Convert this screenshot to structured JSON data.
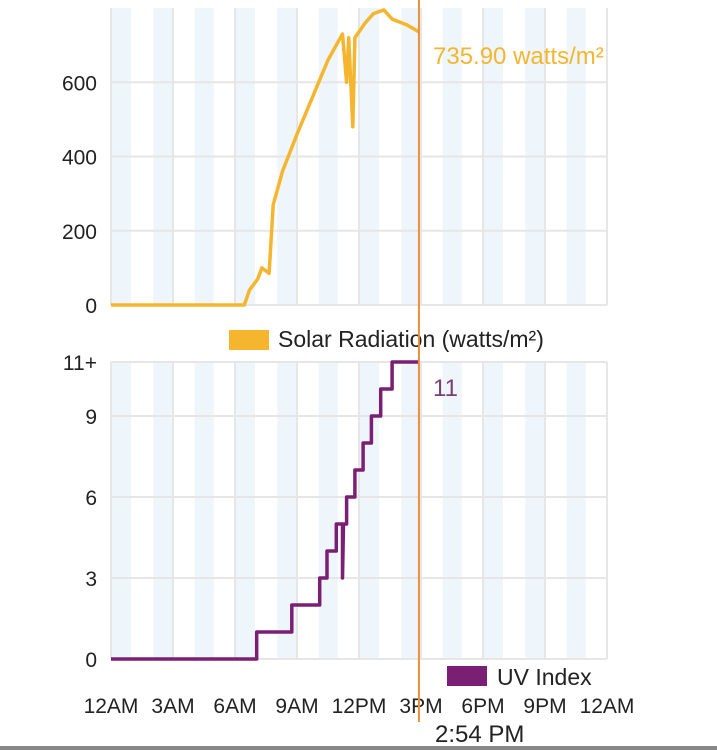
{
  "chart_data": [
    {
      "type": "line",
      "title": "",
      "legend": "Solar Radiation (watts/m²)",
      "legend_placement": "bottom-right",
      "ylim": [
        0,
        800
      ],
      "yticks": [
        "0",
        "200",
        "400",
        "600"
      ],
      "ytick_values": [
        0,
        200,
        400,
        600
      ],
      "xlim": [
        0,
        24
      ],
      "color": "#f6b52e",
      "cursor_label": "735.90 watts/m²",
      "x": [
        0,
        6.45,
        6.7,
        7.1,
        7.3,
        7.65,
        7.85,
        8.3,
        9.0,
        9.9,
        10.5,
        11.2,
        11.4,
        11.5,
        11.7,
        11.8,
        12.3,
        12.7,
        13.2,
        13.6,
        14.3,
        14.9
      ],
      "y": [
        0,
        0,
        40,
        70,
        100,
        85,
        270,
        360,
        460,
        580,
        660,
        730,
        600,
        720,
        480,
        720,
        760,
        785,
        795,
        770,
        755,
        735.9
      ]
    },
    {
      "type": "line",
      "title": "",
      "legend": "UV Index",
      "legend_placement": "bottom-right",
      "ylim": [
        0,
        11
      ],
      "yticks": [
        "0",
        "3",
        "6",
        "9",
        "11+"
      ],
      "ytick_values": [
        0,
        3,
        6,
        9,
        11
      ],
      "xlim": [
        0,
        24
      ],
      "color": "#7b1f74",
      "cursor_label": "11",
      "x": [
        0,
        7.05,
        7.05,
        8.75,
        8.75,
        10.1,
        10.1,
        10.45,
        10.45,
        10.9,
        10.9,
        11.2,
        11.2,
        11.25,
        11.4,
        11.4,
        11.8,
        11.8,
        12.2,
        12.2,
        12.6,
        12.6,
        13.05,
        13.05,
        13.6,
        13.6,
        14.9
      ],
      "y": [
        0,
        0,
        1,
        1,
        2,
        2,
        3,
        3,
        4,
        4,
        5,
        5,
        3,
        5,
        5,
        6,
        6,
        7,
        7,
        8,
        8,
        9,
        9,
        10,
        10,
        11,
        11
      ]
    }
  ],
  "xaxis": {
    "ticks": [
      "12AM",
      "3AM",
      "6AM",
      "9AM",
      "12PM",
      "3PM",
      "6PM",
      "9PM",
      "12AM"
    ],
    "tick_values": [
      0,
      3,
      6,
      9,
      12,
      15,
      18,
      21,
      24
    ]
  },
  "cursor": {
    "time_label": "2:54 PM",
    "hour": 14.9,
    "color": "#e8903a"
  }
}
